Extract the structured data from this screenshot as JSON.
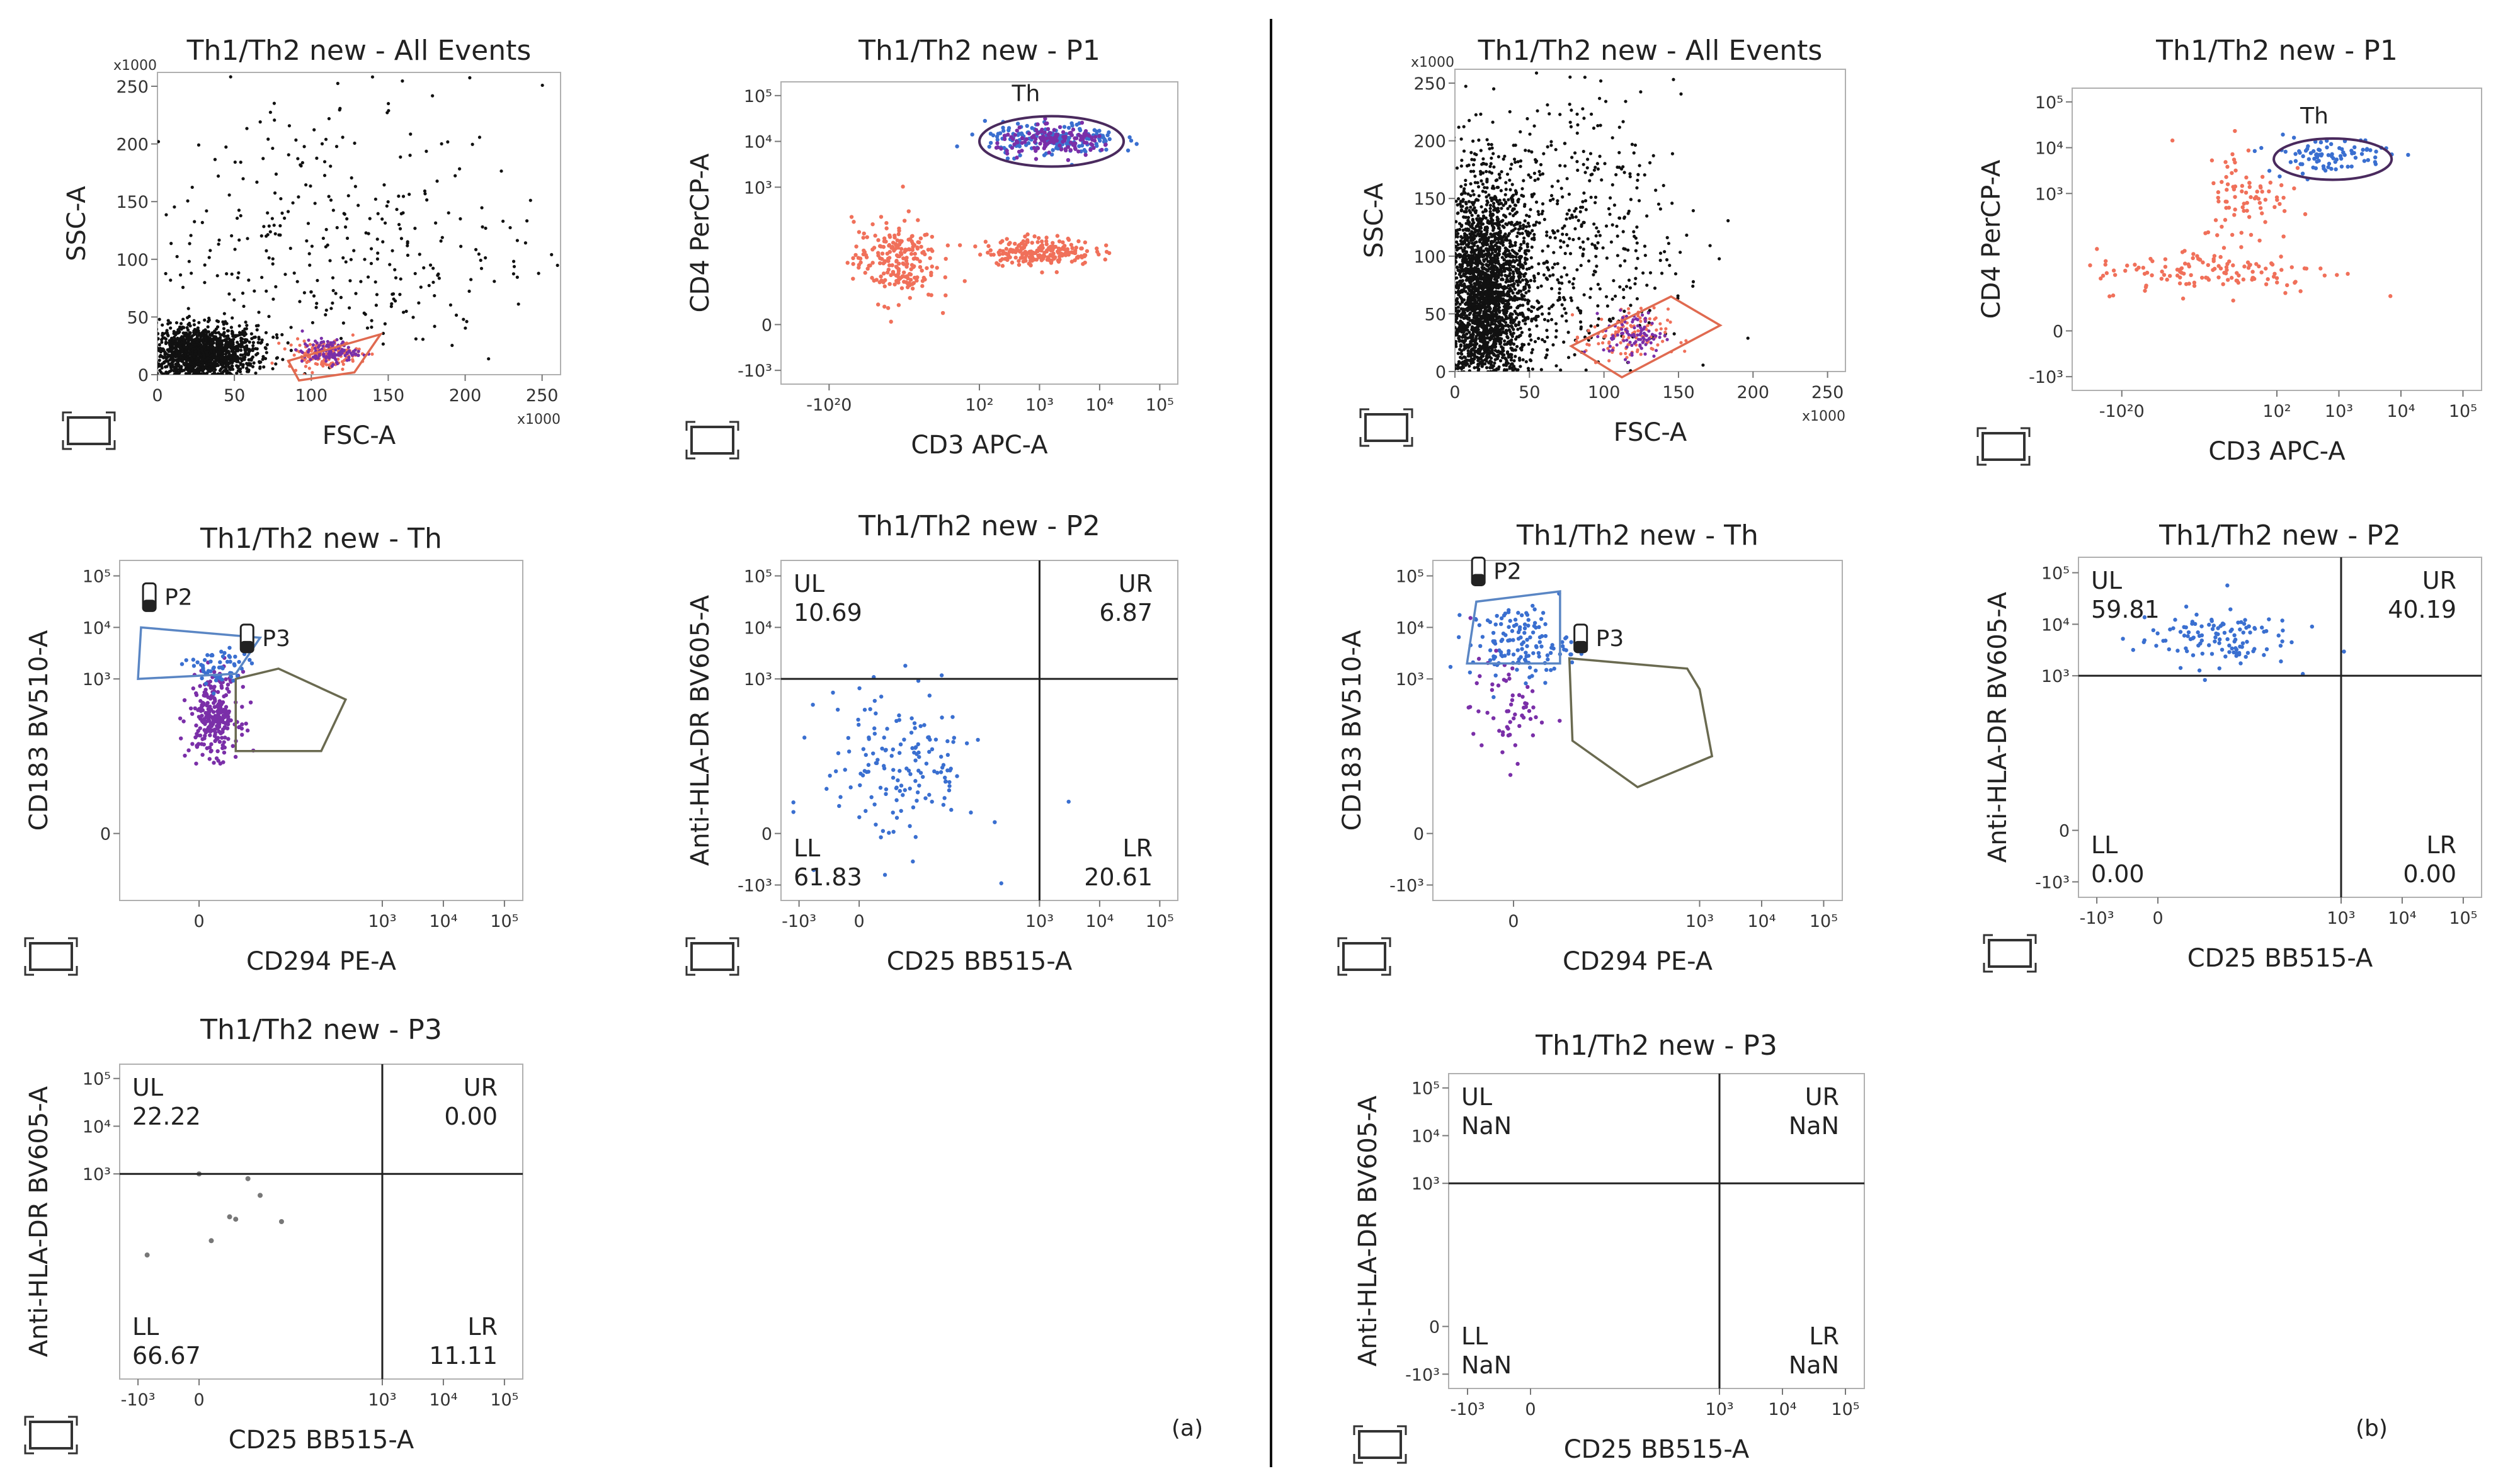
{
  "figure": {
    "panel_a_label": "(a)",
    "panel_b_label": "(b)"
  },
  "colors": {
    "dots_black": "#111111",
    "dots_red": "#f0705a",
    "dots_purple": "#7a2fa8",
    "dots_blue": "#3a6fd0",
    "gate_red": "#e06a50",
    "gate_purple": "#4a2a5e",
    "gate_blue": "#5a86c4",
    "gate_olive": "#6a6a50"
  },
  "chart_data": [
    {
      "id": "a1",
      "type": "scatter",
      "title": "Th1/Th2 new - All Events",
      "xlabel": "FSC-A",
      "ylabel": "SSC-A",
      "x_ticks": [
        "0",
        "50",
        "100",
        "150",
        "200",
        "250"
      ],
      "y_ticks": [
        "0",
        "50",
        "100",
        "150",
        "200",
        "250"
      ],
      "x_multiplier": "x1000",
      "y_multiplier": "x1000",
      "xlim": [
        0,
        262
      ],
      "ylim": [
        0,
        262
      ],
      "gates": [
        {
          "name": "",
          "shape": "polygon",
          "color": "red",
          "points": [
            [
              85,
              12
            ],
            [
              145,
              35
            ],
            [
              128,
              2
            ],
            [
              92,
              -5
            ]
          ]
        }
      ],
      "populations": [
        {
          "color": "black",
          "cx": 28,
          "cy": 18,
          "sx": 18,
          "sy": 12,
          "n": 1500
        },
        {
          "color": "black",
          "cx": 110,
          "cy": 110,
          "sx": 70,
          "sy": 70,
          "n": 380
        },
        {
          "color": "red",
          "cx": 108,
          "cy": 18,
          "sx": 12,
          "sy": 6,
          "n": 150
        },
        {
          "color": "purple",
          "cx": 112,
          "cy": 20,
          "sx": 9,
          "sy": 5,
          "n": 120
        }
      ]
    },
    {
      "id": "a2",
      "type": "scatter",
      "title": "Th1/Th2 new - P1",
      "xlabel": "CD3 APC-A",
      "ylabel": "CD4 PerCP-A",
      "x_ticks": [
        "-10²0",
        "10²",
        "10³",
        "10⁴",
        "10⁵"
      ],
      "y_ticks": [
        "-10³",
        "0",
        "10³",
        "10⁴",
        "10⁵"
      ],
      "gates": [
        {
          "name": "Th",
          "shape": "ellipse",
          "color": "purple",
          "cx": 3.2,
          "cy": 4.0,
          "rx": 1.2,
          "ry": 0.55
        }
      ],
      "populations": [
        {
          "color": "red",
          "cx": 0.6,
          "cy": 1.4,
          "sx": 0.35,
          "sy": 0.45,
          "n": 220
        },
        {
          "color": "red",
          "cx": 3.0,
          "cy": 1.6,
          "sx": 0.45,
          "sy": 0.15,
          "n": 220
        },
        {
          "color": "blue",
          "cx": 3.2,
          "cy": 4.05,
          "sx": 0.55,
          "sy": 0.18,
          "n": 180
        },
        {
          "color": "purple",
          "cx": 3.3,
          "cy": 4.0,
          "sx": 0.5,
          "sy": 0.15,
          "n": 140
        }
      ]
    },
    {
      "id": "a3",
      "type": "scatter",
      "title": "Th1/Th2 new - Th",
      "xlabel": "CD294 PE-A",
      "ylabel": "CD183 BV510-A",
      "x_ticks": [
        "0",
        "10³",
        "10⁴",
        "10⁵"
      ],
      "y_ticks": [
        "0",
        "10³",
        "10⁴",
        "10⁵"
      ],
      "gates": [
        {
          "name": "P2",
          "shape": "polygon",
          "color": "blue",
          "points": [
            [
              -1.0,
              3.0
            ],
            [
              -0.95,
              4.0
            ],
            [
              1.0,
              3.8
            ],
            [
              0.6,
              3.1
            ]
          ]
        },
        {
          "name": "P3",
          "shape": "polygon",
          "color": "olive",
          "points": [
            [
              0.6,
              3.0
            ],
            [
              1.3,
              3.2
            ],
            [
              2.4,
              2.6
            ],
            [
              2.0,
              1.6
            ],
            [
              0.6,
              1.6
            ]
          ]
        }
      ],
      "populations": [
        {
          "color": "purple",
          "cx": 0.25,
          "cy": 2.3,
          "sx": 0.2,
          "sy": 0.4,
          "n": 260
        },
        {
          "color": "blue",
          "cx": 0.3,
          "cy": 3.2,
          "sx": 0.25,
          "sy": 0.2,
          "n": 60
        }
      ]
    },
    {
      "id": "a4",
      "type": "scatter",
      "title": "Th1/Th2 new - P2",
      "xlabel": "CD25 BB515-A",
      "ylabel": "Anti-HLA-DR BV605-A",
      "x_ticks": [
        "-10³",
        "0",
        "10³",
        "10⁴",
        "10⁵"
      ],
      "y_ticks": [
        "-10³",
        "0",
        "10³",
        "10⁴",
        "10⁵"
      ],
      "quadrants": {
        "UL": "10.69",
        "UR": "6.87",
        "LL": "61.83",
        "LR": "20.61"
      },
      "populations": [
        {
          "color": "blue",
          "cx": 0.7,
          "cy": 1.3,
          "sx": 0.65,
          "sy": 0.75,
          "n": 160
        }
      ]
    },
    {
      "id": "a5",
      "type": "scatter",
      "title": "Th1/Th2 new - P3",
      "xlabel": "CD25 BB515-A",
      "ylabel": "Anti-HLA-DR BV605-A",
      "x_ticks": [
        "-10³",
        "0",
        "10³",
        "10⁴",
        "10⁵"
      ],
      "y_ticks": [
        "10³",
        "10⁴",
        "10⁵"
      ],
      "quadrants": {
        "UL": "22.22",
        "UR": "0.00",
        "LL": "66.67",
        "LR": "11.11"
      },
      "points": [
        [
          0.0,
          3.0
        ],
        [
          0.8,
          2.9
        ],
        [
          0.5,
          2.1
        ],
        [
          0.6,
          2.05
        ],
        [
          1.35,
          2.0
        ],
        [
          -0.85,
          1.3
        ],
        [
          0.2,
          1.6
        ],
        [
          1.0,
          2.55
        ]
      ]
    },
    {
      "id": "b1",
      "type": "scatter",
      "title": "Th1/Th2 new - All Events",
      "xlabel": "FSC-A",
      "ylabel": "SSC-A",
      "x_ticks": [
        "0",
        "50",
        "100",
        "150",
        "200",
        "250"
      ],
      "y_ticks": [
        "0",
        "50",
        "100",
        "150",
        "200",
        "250"
      ],
      "x_multiplier": "x1000",
      "y_multiplier": "x1000",
      "xlim": [
        0,
        262
      ],
      "ylim": [
        0,
        262
      ],
      "gates": [
        {
          "name": "",
          "shape": "polygon",
          "color": "red",
          "points": [
            [
              78,
              22
            ],
            [
              145,
              65
            ],
            [
              178,
              40
            ],
            [
              112,
              -5
            ]
          ]
        }
      ],
      "populations": [
        {
          "color": "black",
          "cx": 20,
          "cy": 60,
          "sx": 14,
          "sy": 50,
          "n": 2600
        },
        {
          "color": "black",
          "cx": 60,
          "cy": 110,
          "sx": 45,
          "sy": 60,
          "n": 700
        },
        {
          "color": "red",
          "cx": 115,
          "cy": 30,
          "sx": 14,
          "sy": 12,
          "n": 120
        },
        {
          "color": "purple",
          "cx": 120,
          "cy": 32,
          "sx": 10,
          "sy": 10,
          "n": 90
        }
      ]
    },
    {
      "id": "b2",
      "type": "scatter",
      "title": "Th1/Th2 new - P1",
      "xlabel": "CD3 APC-A",
      "ylabel": "CD4 PerCP-A",
      "x_ticks": [
        "-10²0",
        "10²",
        "10³",
        "10⁴",
        "10⁵"
      ],
      "y_ticks": [
        "-10³",
        "0",
        "10³",
        "10⁴",
        "10⁵"
      ],
      "gates": [
        {
          "name": "Th",
          "shape": "ellipse",
          "color": "purple",
          "cx": 2.9,
          "cy": 3.75,
          "rx": 0.95,
          "ry": 0.45
        }
      ],
      "populations": [
        {
          "color": "red",
          "cx": 1.0,
          "cy": 1.3,
          "sx": 1.0,
          "sy": 0.25,
          "n": 130
        },
        {
          "color": "red",
          "cx": 1.5,
          "cy": 3.0,
          "sx": 0.35,
          "sy": 0.55,
          "n": 80
        },
        {
          "color": "blue",
          "cx": 2.8,
          "cy": 3.85,
          "sx": 0.5,
          "sy": 0.2,
          "n": 90
        }
      ]
    },
    {
      "id": "b3",
      "type": "scatter",
      "title": "Th1/Th2 new - Th",
      "xlabel": "CD294 PE-A",
      "ylabel": "CD183 BV510-A",
      "x_ticks": [
        "0",
        "10³",
        "10⁴",
        "10⁵"
      ],
      "y_ticks": [
        "-10³",
        "0",
        "10³",
        "10⁴",
        "10⁵"
      ],
      "gates": [
        {
          "name": "P2",
          "shape": "polygon",
          "color": "blue",
          "points": [
            [
              -0.75,
              3.3
            ],
            [
              -0.6,
              4.5
            ],
            [
              0.75,
              4.7
            ],
            [
              0.75,
              3.3
            ]
          ]
        },
        {
          "name": "P3",
          "shape": "polygon",
          "color": "olive",
          "points": [
            [
              0.9,
              3.4
            ],
            [
              2.8,
              3.2
            ],
            [
              3.0,
              2.8
            ],
            [
              3.2,
              1.5
            ],
            [
              2.0,
              0.9
            ],
            [
              0.95,
              1.8
            ]
          ]
        }
      ],
      "populations": [
        {
          "color": "blue",
          "cx": 0.1,
          "cy": 3.7,
          "sx": 0.4,
          "sy": 0.35,
          "n": 140
        },
        {
          "color": "purple",
          "cx": -0.1,
          "cy": 2.4,
          "sx": 0.3,
          "sy": 0.5,
          "n": 60
        }
      ]
    },
    {
      "id": "b4",
      "type": "scatter",
      "title": "Th1/Th2 new - P2",
      "xlabel": "CD25 BB515-A",
      "ylabel": "Anti-HLA-DR BV605-A",
      "x_ticks": [
        "-10³",
        "0",
        "10³",
        "10⁴",
        "10⁵"
      ],
      "y_ticks": [
        "-10³",
        "0",
        "10³",
        "10⁴",
        "10⁵"
      ],
      "quadrants": {
        "UL": "59.81",
        "UR": "40.19",
        "LL": "0.00",
        "LR": "0.00"
      },
      "populations": [
        {
          "color": "blue",
          "cx": 0.9,
          "cy": 3.75,
          "sx": 0.65,
          "sy": 0.28,
          "n": 120
        }
      ]
    },
    {
      "id": "b5",
      "type": "scatter",
      "title": "Th1/Th2 new - P3",
      "xlabel": "CD25 BB515-A",
      "ylabel": "Anti-HLA-DR BV605-A",
      "x_ticks": [
        "-10³",
        "0",
        "10³",
        "10⁴",
        "10⁵"
      ],
      "y_ticks": [
        "-10³",
        "0",
        "10³",
        "10⁴",
        "10⁵"
      ],
      "quadrants": {
        "UL": "NaN",
        "UR": "NaN",
        "LL": "NaN",
        "LR": "NaN"
      },
      "points": []
    }
  ]
}
